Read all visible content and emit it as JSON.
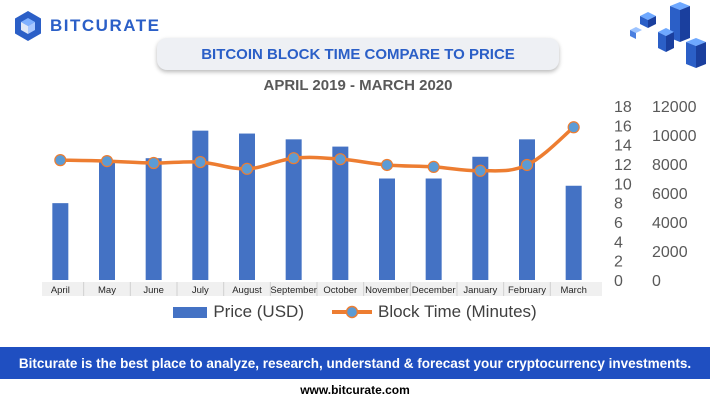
{
  "brand": {
    "name": "BITCURATE"
  },
  "header": {
    "title": "BITCOIN BLOCK TIME COMPARE TO PRICE",
    "subtitle": "APRIL 2019 - MARCH 2020"
  },
  "colors": {
    "price": "#4472c4",
    "block_time": "#ed7d31",
    "marker": "#5b9bd5",
    "brand": "#1f4fc1"
  },
  "icons": {
    "logo": "cube-hexagon-icon",
    "decoration": "isometric-cubes-icon"
  },
  "chart_data": {
    "type": "bar",
    "categories": [
      "April",
      "May",
      "June",
      "July",
      "August",
      "September",
      "October",
      "November",
      "December",
      "January",
      "February",
      "March"
    ],
    "series": [
      {
        "name": "Price (USD)",
        "type": "bar",
        "axis": "right",
        "values": [
          5300,
          8200,
          8400,
          10300,
          10100,
          9700,
          9200,
          7000,
          7000,
          8500,
          9700,
          6500
        ]
      },
      {
        "name": "Block Time (Minutes)",
        "type": "line",
        "axis": "left",
        "values": [
          12.4,
          12.3,
          12.1,
          12.2,
          11.5,
          12.6,
          12.5,
          11.9,
          11.7,
          11.3,
          11.9,
          15.8
        ]
      }
    ],
    "y_left": {
      "ylim": [
        0,
        18
      ],
      "ticks": [
        "0",
        "2",
        "4",
        "6",
        "8",
        "10",
        "12",
        "14",
        "16",
        "18"
      ]
    },
    "y_right": {
      "ylim": [
        0,
        12000
      ],
      "ticks": [
        "0",
        "2000",
        "4000",
        "6000",
        "8000",
        "10000",
        "12000"
      ]
    },
    "legend": "bottom",
    "grid": false
  },
  "footer": {
    "tagline": "Bitcurate is the best place to analyze, research, understand & forecast your cryptocurrency investments.",
    "url": "www.bitcurate.com"
  }
}
